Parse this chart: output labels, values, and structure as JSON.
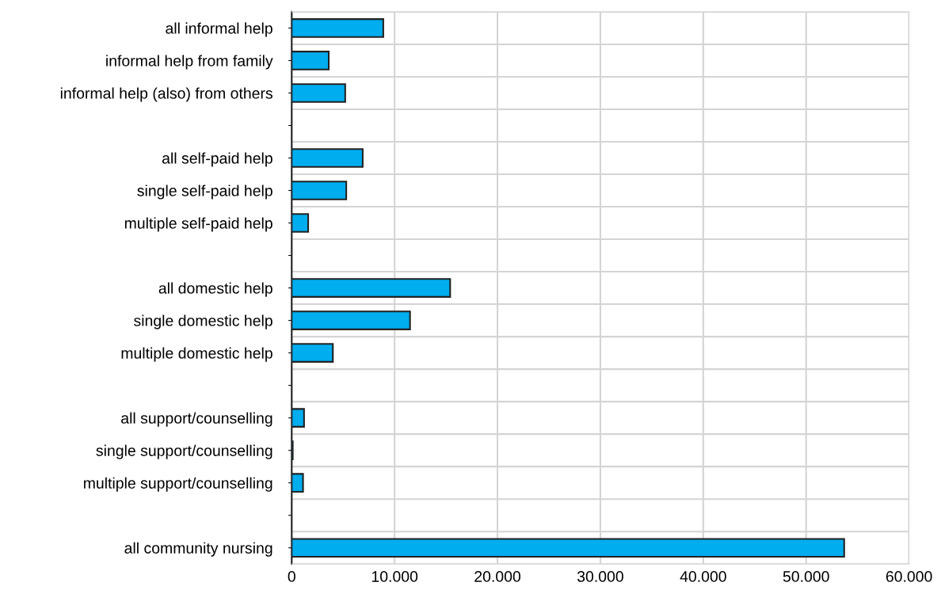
{
  "chart_data": {
    "type": "bar",
    "orientation": "horizontal",
    "categories": [
      "all informal help",
      "informal help from family",
      "informal help (also) from others",
      null,
      "all self-paid help",
      "single self-paid help",
      "multiple self-paid help",
      null,
      "all domestic help",
      "single domestic help",
      "multiple domestic help",
      null,
      "all support/counselling",
      "single support/counselling",
      "multiple support/counselling",
      null,
      "all community nursing"
    ],
    "values": [
      8900,
      3600,
      5200,
      null,
      6900,
      5300,
      1600,
      null,
      15400,
      11500,
      4000,
      null,
      1200,
      100,
      1100,
      null,
      53700
    ],
    "color": "#00adef",
    "xlim": [
      0,
      60000
    ],
    "xticks": [
      0,
      {
        "value": 10000,
        "label": "10.000"
      },
      {
        "value": 20000,
        "label": "20.000"
      },
      {
        "value": 30000,
        "label": "30.000"
      },
      {
        "value": 40000,
        "label": "40.000"
      },
      {
        "value": 50000,
        "label": "50.000"
      },
      {
        "value": 60000,
        "label": "60.000"
      }
    ],
    "grid": true,
    "legend": false
  }
}
